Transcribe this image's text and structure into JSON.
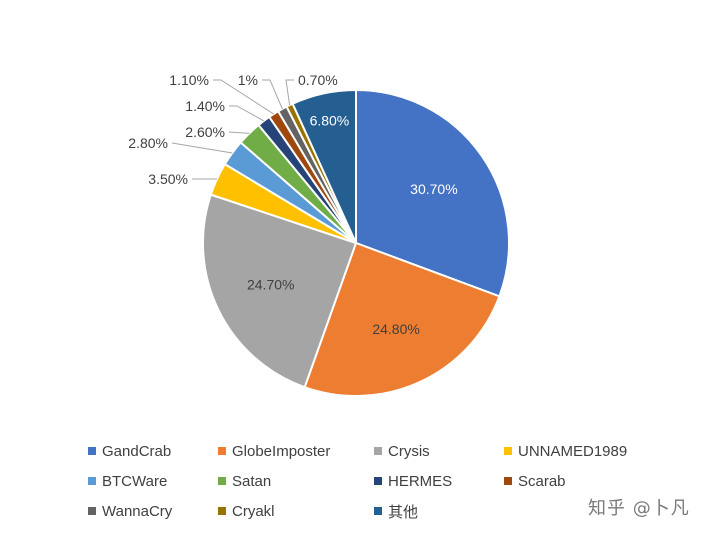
{
  "chart_data": {
    "type": "pie",
    "title": "",
    "categories": [
      "GandCrab",
      "GlobeImposter",
      "Crysis",
      "UNNAMED1989",
      "BTCWare",
      "Satan",
      "HERMES",
      "Scarab",
      "WannaCry",
      "Cryakl",
      "其他"
    ],
    "values": [
      30.7,
      24.8,
      24.7,
      3.5,
      2.8,
      2.6,
      1.4,
      1.1,
      1.0,
      0.7,
      6.8
    ],
    "labels": [
      "30.70%",
      "24.80%",
      "24.70%",
      "3.50%",
      "2.80%",
      "2.60%",
      "1.40%",
      "1.10%",
      "1%",
      "0.70%",
      "6.80%"
    ],
    "colors": [
      "#4472C4",
      "#ED7D31",
      "#A5A5A5",
      "#FFC000",
      "#5B9BD5",
      "#70AD47",
      "#264478",
      "#9E480E",
      "#636363",
      "#997300",
      "#255E91"
    ],
    "legend_position": "bottom"
  },
  "watermark": "知乎 @卜凡"
}
